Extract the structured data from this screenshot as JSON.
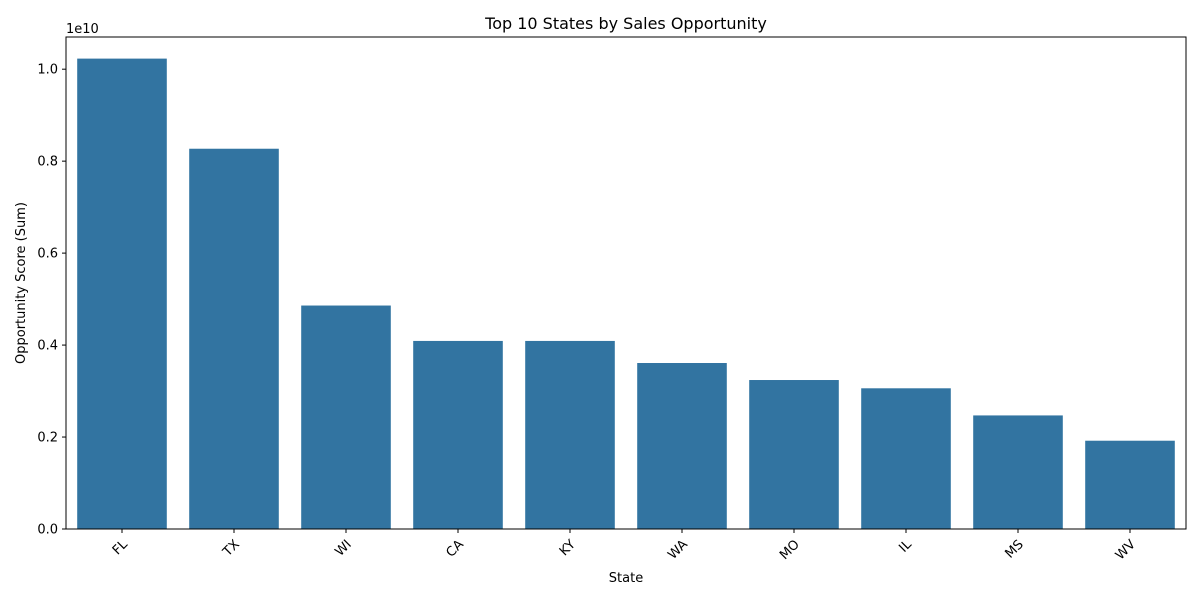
{
  "chart_data": {
    "type": "bar",
    "title": "Top 10 States by Sales Opportunity",
    "xlabel": "State",
    "ylabel": "Opportunity Score (Sum)",
    "offset_label": "1e10",
    "categories": [
      "FL",
      "TX",
      "WI",
      "CA",
      "KY",
      "WA",
      "MO",
      "IL",
      "MS",
      "WV"
    ],
    "values": [
      10230000000,
      8270000000,
      4860000000,
      4090000000,
      4090000000,
      3610000000,
      3240000000,
      3060000000,
      2470000000,
      1920000000
    ],
    "ylim": [
      0,
      10700000000
    ],
    "yticks": [
      0,
      2000000000,
      4000000000,
      6000000000,
      8000000000,
      10000000000
    ],
    "ytick_labels": [
      "0.0",
      "0.2",
      "0.4",
      "0.6",
      "0.8",
      "1.0"
    ],
    "bar_color": "#3274a1",
    "grid": false,
    "legend": "none"
  }
}
